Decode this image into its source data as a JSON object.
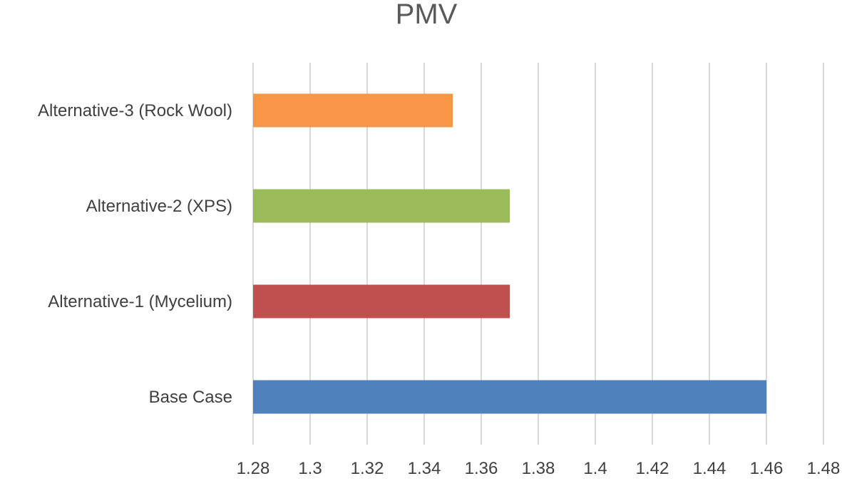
{
  "chart_data": {
    "type": "bar",
    "orientation": "horizontal",
    "title": "PMV",
    "xlabel": "",
    "ylabel": "",
    "categories": [
      "Base Case",
      "Alternative-1 (Mycelium)",
      "Alternative-2 (XPS)",
      "Alternative-3 (Rock Wool)"
    ],
    "values": [
      1.46,
      1.37,
      1.37,
      1.35
    ],
    "colors": [
      "#4F81BD",
      "#C0504D",
      "#9BBB59",
      "#F79646"
    ],
    "xlim": [
      1.28,
      1.48
    ],
    "xticks": [
      1.28,
      1.3,
      1.32,
      1.34,
      1.36,
      1.38,
      1.4,
      1.42,
      1.44,
      1.46,
      1.48
    ],
    "xtick_labels": [
      "1.28",
      "1.3",
      "1.32",
      "1.34",
      "1.36",
      "1.38",
      "1.4",
      "1.42",
      "1.44",
      "1.46",
      "1.48"
    ],
    "grid": "vertical",
    "legend": "none"
  }
}
